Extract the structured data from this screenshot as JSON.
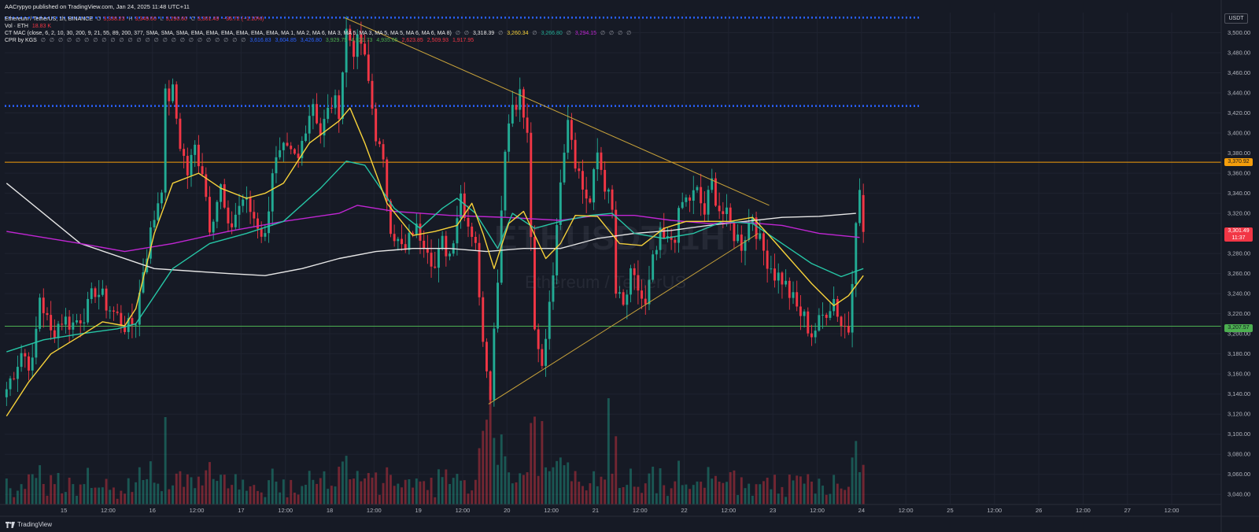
{
  "header": {
    "publish_text": "AACrypyo published on TradingView.com, Jan 24, 2025 11:48 UTC+11",
    "symbol_line": "Ethereum / TetherUS, 1h, BINANCE",
    "ohlc": {
      "o_label": "O",
      "o": "3,338.23",
      "h_label": "H",
      "h": "3,349.60",
      "l_label": "L",
      "l": "3,290.60",
      "c_label": "C",
      "c": "3,301.49",
      "change": "−36.72 (−1.10%)"
    },
    "volume_label": "Vol · ETH",
    "volume_value": "18.83 K",
    "ctmac_label": "CT MAC (close, 6, 2, 10, 30, 200, 9, 21, 55, 89, 200, 377, SMA, SMA, SMA, EMA, EMA, EMA, EMA, EMA, EMA, MA 1, MA 2, MA 6, MA 3, MA 5, MA 3, MA 5, MA 5, MA 6, MA 6, MA 8)",
    "ctmac_values": [
      "3,318.39",
      "3,260.34",
      "3,266.80",
      "3,294.15"
    ],
    "cpr_label": "CPR by KGS",
    "cpr_values": [
      "3,616.83",
      "3,604.85",
      "3,426.80",
      "3,929.75",
      "4,521.73",
      "4,935.65",
      "2,623.85",
      "2,509.93",
      "1,917.95"
    ],
    "placeholder_glyph": "∅"
  },
  "right_axis": {
    "currency": "USDT",
    "tag_orange": "3,370.92",
    "tag_current_price": "3,301.49",
    "tag_current_time": "11:37",
    "tag_green": "3,207.57"
  },
  "watermark": {
    "symbol": "ETHUSDT, 1H",
    "name": "Ethereum / TetherUS"
  },
  "footer": {
    "brand": "TradingView"
  },
  "colors": {
    "background": "#161a25",
    "grid": "#1f2330",
    "up": "#22ab94",
    "down": "#f23645",
    "ma_yellow": "#f7d23a",
    "ma_teal": "#26c6a6",
    "ma_purple": "#c026d3",
    "ma_white": "#e6e6e6",
    "cpr_blue": "#2962ff",
    "level_orange": "#f59e0b",
    "level_green": "#4caf50",
    "trendline": "#c8a23a"
  },
  "chart_data": {
    "type": "candlestick",
    "interval": "1h",
    "ylim": [
      3030,
      3520
    ],
    "y_ticks": [
      3040,
      3060,
      3080,
      3100,
      3120,
      3140,
      3160,
      3180,
      3200,
      3220,
      3240,
      3260,
      3280,
      3300,
      3320,
      3340,
      3360,
      3380,
      3400,
      3420,
      3440,
      3460,
      3480,
      3500
    ],
    "x_labels": [
      "15",
      "12:00",
      "16",
      "12:00",
      "17",
      "12:00",
      "18",
      "12:00",
      "19",
      "12:00",
      "20",
      "12:00",
      "21",
      "12:00",
      "22",
      "12:00",
      "23",
      "12:00",
      "24",
      "12:00",
      "25",
      "12:00",
      "26",
      "12:00",
      "27",
      "12:00"
    ],
    "x_ticks_hours": [
      16,
      28,
      40,
      52,
      64,
      76,
      88,
      100,
      112,
      124,
      136,
      148,
      160,
      172,
      184,
      196,
      208,
      220,
      232,
      244,
      256,
      268,
      280,
      292,
      304,
      316
    ],
    "x_range_hours": [
      0,
      326
    ],
    "horizontal_levels": [
      {
        "name": "CPR upper",
        "value": 3515,
        "style": "dotted",
        "color": "#2962ff"
      },
      {
        "name": "CPR lower",
        "value": 3427,
        "style": "dotted",
        "color": "#2962ff"
      },
      {
        "name": "resistance",
        "value": 3370.92,
        "style": "solid",
        "color": "#f59e0b"
      },
      {
        "name": "support",
        "value": 3207.57,
        "style": "solid",
        "color": "#4caf50"
      }
    ],
    "trendlines": [
      {
        "from": [
          92,
          3515
        ],
        "to": [
          207,
          3328
        ]
      },
      {
        "from": [
          131,
          3130
        ],
        "to": [
          204,
          3300
        ]
      }
    ],
    "price_anchors": [
      [
        0,
        3145
      ],
      [
        4,
        3182
      ],
      [
        7,
        3168
      ],
      [
        9,
        3238
      ],
      [
        12,
        3200
      ],
      [
        15,
        3215
      ],
      [
        18,
        3210
      ],
      [
        22,
        3225
      ],
      [
        24,
        3245
      ],
      [
        28,
        3225
      ],
      [
        33,
        3205
      ],
      [
        35,
        3215
      ],
      [
        37,
        3265
      ],
      [
        39,
        3300
      ],
      [
        42,
        3350
      ],
      [
        43,
        3435
      ],
      [
        45,
        3440
      ],
      [
        47,
        3390
      ],
      [
        49,
        3360
      ],
      [
        51,
        3385
      ],
      [
        53,
        3365
      ],
      [
        55,
        3310
      ],
      [
        58,
        3345
      ],
      [
        60,
        3300
      ],
      [
        62,
        3320
      ],
      [
        64,
        3335
      ],
      [
        68,
        3310
      ],
      [
        70,
        3295
      ],
      [
        72,
        3365
      ],
      [
        75,
        3380
      ],
      [
        79,
        3372
      ],
      [
        81,
        3410
      ],
      [
        83,
        3432
      ],
      [
        85,
        3400
      ],
      [
        88,
        3430
      ],
      [
        90,
        3425
      ],
      [
        92,
        3502
      ],
      [
        94,
        3485
      ],
      [
        96,
        3490
      ],
      [
        98,
        3450
      ],
      [
        100,
        3400
      ],
      [
        102,
        3365
      ],
      [
        104,
        3310
      ],
      [
        106,
        3290
      ],
      [
        108,
        3280
      ],
      [
        110,
        3305
      ],
      [
        112,
        3300
      ],
      [
        114,
        3290
      ],
      [
        116,
        3265
      ],
      [
        118,
        3290
      ],
      [
        120,
        3280
      ],
      [
        123,
        3340
      ],
      [
        125,
        3310
      ],
      [
        127,
        3295
      ],
      [
        128,
        3230
      ],
      [
        130,
        3170
      ],
      [
        131,
        3145
      ],
      [
        133,
        3260
      ],
      [
        135,
        3390
      ],
      [
        137,
        3430
      ],
      [
        139,
        3438
      ],
      [
        141,
        3395
      ],
      [
        142,
        3300
      ],
      [
        143,
        3195
      ],
      [
        145,
        3165
      ],
      [
        147,
        3235
      ],
      [
        149,
        3300
      ],
      [
        150,
        3360
      ],
      [
        152,
        3420
      ],
      [
        154,
        3375
      ],
      [
        156,
        3345
      ],
      [
        158,
        3330
      ],
      [
        160,
        3380
      ],
      [
        162,
        3350
      ],
      [
        164,
        3320
      ],
      [
        165,
        3240
      ],
      [
        167,
        3225
      ],
      [
        169,
        3255
      ],
      [
        171,
        3245
      ],
      [
        173,
        3225
      ],
      [
        175,
        3270
      ],
      [
        177,
        3295
      ],
      [
        179,
        3290
      ],
      [
        181,
        3300
      ],
      [
        183,
        3330
      ],
      [
        185,
        3335
      ],
      [
        187,
        3340
      ],
      [
        189,
        3320
      ],
      [
        191,
        3350
      ],
      [
        193,
        3325
      ],
      [
        195,
        3315
      ],
      [
        197,
        3300
      ],
      [
        199,
        3290
      ],
      [
        200,
        3300
      ],
      [
        202,
        3320
      ],
      [
        204,
        3290
      ],
      [
        206,
        3275
      ],
      [
        208,
        3260
      ],
      [
        210,
        3255
      ],
      [
        212,
        3240
      ],
      [
        214,
        3225
      ],
      [
        216,
        3215
      ],
      [
        218,
        3200
      ],
      [
        220,
        3210
      ],
      [
        222,
        3225
      ],
      [
        224,
        3235
      ],
      [
        226,
        3210
      ],
      [
        228,
        3205
      ],
      [
        229,
        3260
      ],
      [
        230,
        3320
      ],
      [
        231,
        3338
      ],
      [
        232,
        3301.5
      ]
    ],
    "ma_series": [
      {
        "color": "#e6e6e6",
        "points": [
          [
            0,
            3350
          ],
          [
            20,
            3290
          ],
          [
            40,
            3265
          ],
          [
            60,
            3260
          ],
          [
            70,
            3258
          ],
          [
            80,
            3265
          ],
          [
            90,
            3275
          ],
          [
            100,
            3282
          ],
          [
            110,
            3285
          ],
          [
            120,
            3285
          ],
          [
            130,
            3282
          ],
          [
            140,
            3285
          ],
          [
            150,
            3285
          ],
          [
            160,
            3295
          ],
          [
            170,
            3300
          ],
          [
            180,
            3303
          ],
          [
            190,
            3308
          ],
          [
            200,
            3312
          ],
          [
            210,
            3316
          ],
          [
            220,
            3317
          ],
          [
            230,
            3320
          ]
        ]
      },
      {
        "color": "#c026d3",
        "points": [
          [
            0,
            3302
          ],
          [
            20,
            3290
          ],
          [
            32,
            3282
          ],
          [
            45,
            3290
          ],
          [
            60,
            3302
          ],
          [
            75,
            3312
          ],
          [
            90,
            3320
          ],
          [
            95,
            3328
          ],
          [
            105,
            3322
          ],
          [
            120,
            3318
          ],
          [
            135,
            3316
          ],
          [
            150,
            3313
          ],
          [
            160,
            3318
          ],
          [
            170,
            3318
          ],
          [
            180,
            3313
          ],
          [
            190,
            3310
          ],
          [
            200,
            3311
          ],
          [
            210,
            3308
          ],
          [
            220,
            3300
          ],
          [
            231,
            3296
          ]
        ]
      },
      {
        "color": "#26c6a6",
        "points": [
          [
            0,
            3182
          ],
          [
            10,
            3194
          ],
          [
            20,
            3200
          ],
          [
            30,
            3205
          ],
          [
            35,
            3210
          ],
          [
            45,
            3265
          ],
          [
            55,
            3290
          ],
          [
            65,
            3300
          ],
          [
            75,
            3312
          ],
          [
            85,
            3345
          ],
          [
            92,
            3372
          ],
          [
            97,
            3368
          ],
          [
            105,
            3325
          ],
          [
            112,
            3305
          ],
          [
            118,
            3325
          ],
          [
            122,
            3335
          ],
          [
            127,
            3320
          ],
          [
            133,
            3285
          ],
          [
            137,
            3320
          ],
          [
            143,
            3305
          ],
          [
            150,
            3312
          ],
          [
            158,
            3318
          ],
          [
            164,
            3320
          ],
          [
            170,
            3300
          ],
          [
            178,
            3295
          ],
          [
            186,
            3300
          ],
          [
            194,
            3312
          ],
          [
            202,
            3310
          ],
          [
            210,
            3290
          ],
          [
            218,
            3270
          ],
          [
            226,
            3257
          ],
          [
            232,
            3265
          ]
        ]
      },
      {
        "color": "#f7d23a",
        "points": [
          [
            0,
            3118
          ],
          [
            6,
            3152
          ],
          [
            12,
            3180
          ],
          [
            20,
            3198
          ],
          [
            26,
            3212
          ],
          [
            32,
            3208
          ],
          [
            35,
            3225
          ],
          [
            40,
            3300
          ],
          [
            45,
            3350
          ],
          [
            52,
            3360
          ],
          [
            58,
            3345
          ],
          [
            65,
            3335
          ],
          [
            70,
            3340
          ],
          [
            75,
            3350
          ],
          [
            82,
            3390
          ],
          [
            90,
            3412
          ],
          [
            93,
            3425
          ],
          [
            97,
            3390
          ],
          [
            103,
            3330
          ],
          [
            110,
            3298
          ],
          [
            116,
            3302
          ],
          [
            122,
            3308
          ],
          [
            126,
            3330
          ],
          [
            129,
            3300
          ],
          [
            132,
            3265
          ],
          [
            136,
            3310
          ],
          [
            140,
            3322
          ],
          [
            146,
            3275
          ],
          [
            150,
            3290
          ],
          [
            154,
            3318
          ],
          [
            160,
            3317
          ],
          [
            166,
            3290
          ],
          [
            172,
            3288
          ],
          [
            178,
            3305
          ],
          [
            184,
            3312
          ],
          [
            190,
            3312
          ],
          [
            196,
            3312
          ],
          [
            202,
            3316
          ],
          [
            206,
            3300
          ],
          [
            212,
            3275
          ],
          [
            218,
            3250
          ],
          [
            224,
            3228
          ],
          [
            228,
            3238
          ],
          [
            232,
            3258
          ]
        ]
      }
    ],
    "last_candle": {
      "open": 3338.23,
      "high": 3349.6,
      "low": 3290.6,
      "close": 3301.49,
      "volume": 18.83
    }
  }
}
